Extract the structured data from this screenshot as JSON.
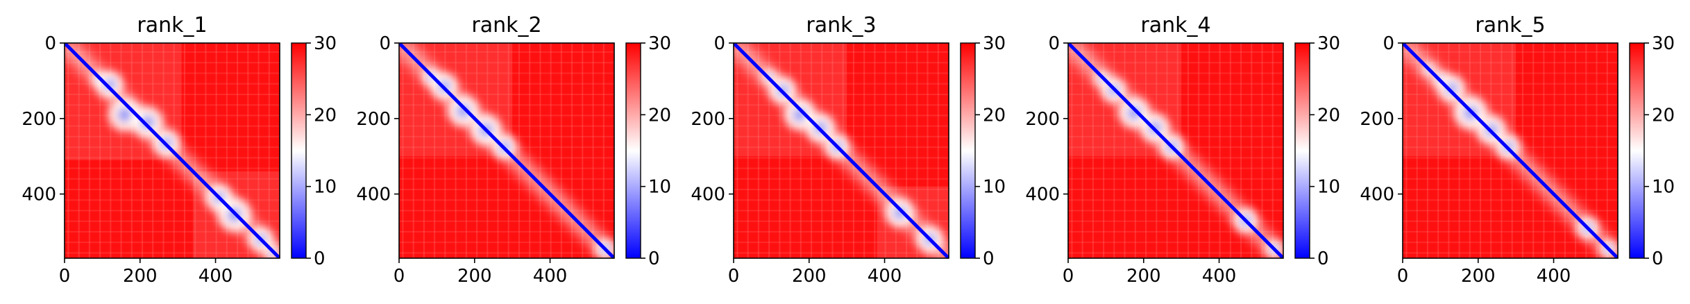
{
  "chart_data": [
    {
      "type": "heatmap",
      "title": "rank_1",
      "x_ticks": [
        "0",
        "200",
        "400"
      ],
      "y_ticks": [
        "0",
        "200",
        "400"
      ],
      "xlim": [
        0,
        570
      ],
      "ylim": [
        570,
        0
      ],
      "colorbar": {
        "ticks": [
          "0",
          "10",
          "20",
          "30"
        ],
        "range": [
          0,
          30
        ],
        "colormap": [
          "#0000ff",
          "#ffffff",
          "#ff0000"
        ]
      },
      "features": {
        "diagonal": true,
        "clusters": [
          [
            90,
            95,
            12
          ],
          [
            120,
            110,
            24
          ],
          [
            160,
            190,
            30
          ],
          [
            220,
            210,
            28
          ],
          [
            270,
            265,
            24
          ],
          [
            410,
            410,
            24
          ],
          [
            450,
            455,
            30
          ],
          [
            520,
            520,
            22
          ],
          [
            550,
            555,
            14
          ]
        ],
        "weak_block": [
          [
            0,
            310,
            0,
            310
          ],
          [
            340,
            570,
            340,
            570
          ]
        ]
      }
    },
    {
      "type": "heatmap",
      "title": "rank_2",
      "x_ticks": [
        "0",
        "200",
        "400"
      ],
      "y_ticks": [
        "0",
        "200",
        "400"
      ],
      "xlim": [
        0,
        570
      ],
      "ylim": [
        570,
        0
      ],
      "colorbar": {
        "ticks": [
          "0",
          "10",
          "20",
          "30"
        ],
        "range": [
          0,
          30
        ],
        "colormap": [
          "#0000ff",
          "#ffffff",
          "#ff0000"
        ]
      },
      "features": {
        "diagonal": true,
        "clusters": [
          [
            85,
            90,
            16
          ],
          [
            120,
            115,
            24
          ],
          [
            170,
            180,
            28
          ],
          [
            230,
            230,
            28
          ],
          [
            280,
            275,
            22
          ],
          [
            545,
            545,
            18
          ]
        ],
        "weak_block": [
          [
            0,
            300,
            0,
            300
          ]
        ]
      }
    },
    {
      "type": "heatmap",
      "title": "rank_3",
      "x_ticks": [
        "0",
        "200",
        "400"
      ],
      "y_ticks": [
        "0",
        "200",
        "400"
      ],
      "xlim": [
        0,
        570
      ],
      "ylim": [
        570,
        0
      ],
      "colorbar": {
        "ticks": [
          "0",
          "10",
          "20",
          "30"
        ],
        "range": [
          0,
          30
        ],
        "colormap": [
          "#0000ff",
          "#ffffff",
          "#ff0000"
        ]
      },
      "features": {
        "diagonal": true,
        "clusters": [
          [
            95,
            90,
            14
          ],
          [
            130,
            125,
            24
          ],
          [
            175,
            190,
            28
          ],
          [
            230,
            225,
            26
          ],
          [
            275,
            275,
            22
          ],
          [
            440,
            450,
            26
          ],
          [
            520,
            520,
            24
          ]
        ],
        "weak_block": [
          [
            0,
            300,
            0,
            300
          ],
          [
            380,
            570,
            380,
            570
          ]
        ]
      }
    },
    {
      "type": "heatmap",
      "title": "rank_4",
      "x_ticks": [
        "0",
        "200",
        "400"
      ],
      "y_ticks": [
        "0",
        "200",
        "400"
      ],
      "xlim": [
        0,
        570
      ],
      "ylim": [
        570,
        0
      ],
      "colorbar": {
        "ticks": [
          "0",
          "10",
          "20",
          "30"
        ],
        "range": [
          0,
          30
        ],
        "colormap": [
          "#0000ff",
          "#ffffff",
          "#ff0000"
        ]
      },
      "features": {
        "diagonal": true,
        "clusters": [
          [
            90,
            95,
            14
          ],
          [
            120,
            125,
            22
          ],
          [
            175,
            185,
            28
          ],
          [
            230,
            225,
            26
          ],
          [
            275,
            275,
            22
          ],
          [
            470,
            470,
            22
          ],
          [
            545,
            545,
            16
          ]
        ],
        "weak_block": [
          [
            0,
            300,
            0,
            300
          ]
        ]
      }
    },
    {
      "type": "heatmap",
      "title": "rank_5",
      "x_ticks": [
        "0",
        "200",
        "400"
      ],
      "y_ticks": [
        "0",
        "200",
        "400"
      ],
      "xlim": [
        0,
        570
      ],
      "ylim": [
        570,
        0
      ],
      "colorbar": {
        "ticks": [
          "0",
          "10",
          "20",
          "30"
        ],
        "range": [
          0,
          30
        ],
        "colormap": [
          "#0000ff",
          "#ffffff",
          "#ff0000"
        ]
      },
      "features": {
        "diagonal": true,
        "clusters": [
          [
            70,
            70,
            12
          ],
          [
            100,
            95,
            14
          ],
          [
            130,
            120,
            24
          ],
          [
            180,
            185,
            30
          ],
          [
            235,
            230,
            26
          ],
          [
            280,
            275,
            22
          ],
          [
            490,
            490,
            20
          ],
          [
            545,
            545,
            16
          ]
        ],
        "weak_block": [
          [
            0,
            300,
            0,
            300
          ]
        ]
      }
    }
  ]
}
